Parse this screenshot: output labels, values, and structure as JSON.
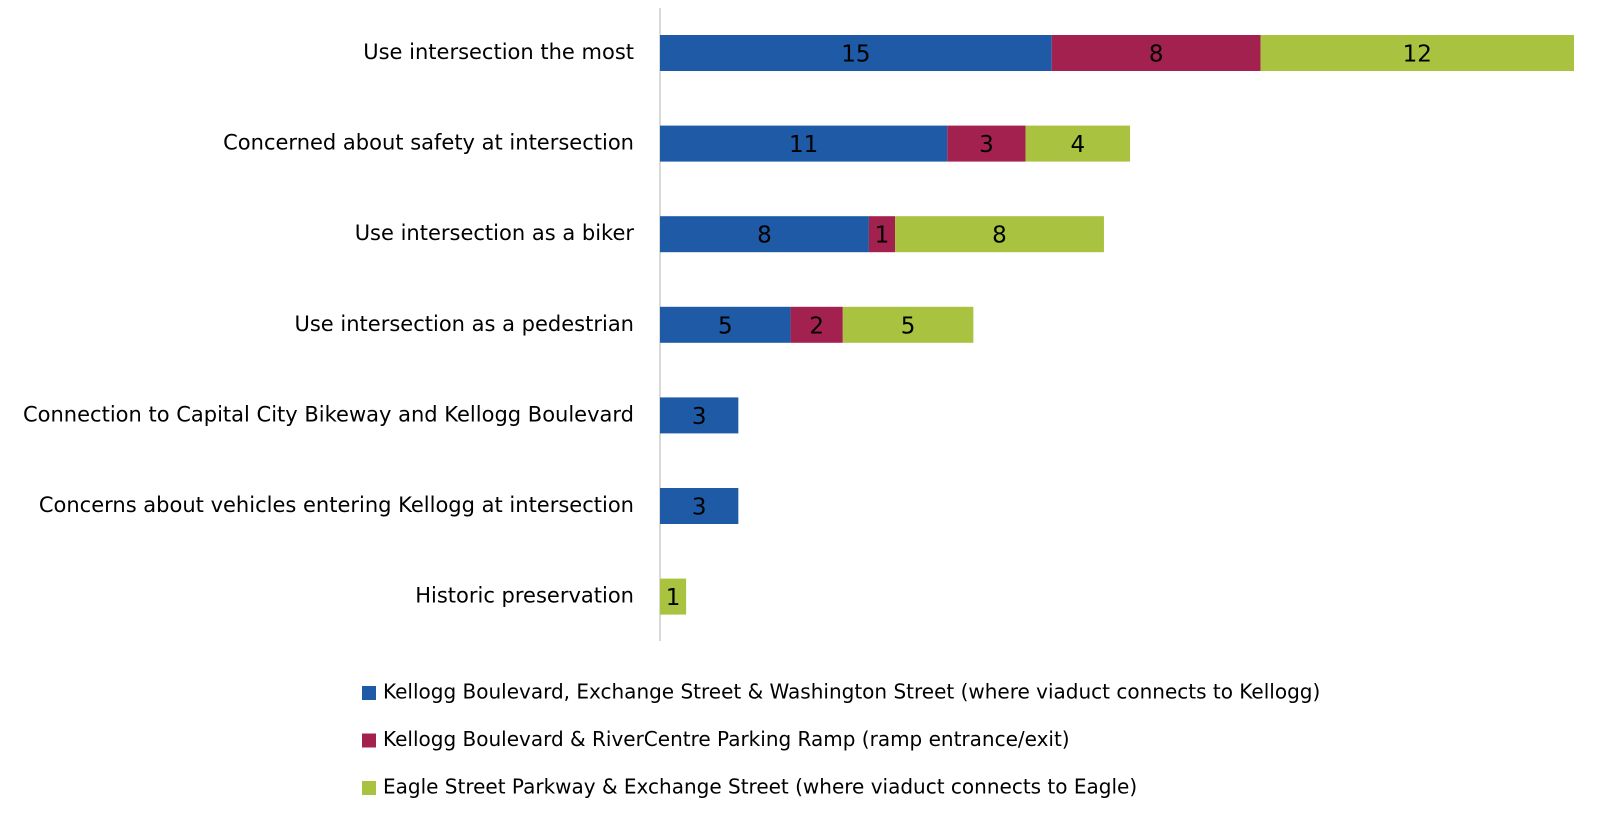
{
  "chart_data": {
    "type": "stacked-bar-horizontal",
    "categories": [
      "Use intersection the most",
      "Concerned about safety at intersection",
      "Use intersection as a biker",
      "Use intersection as a pedestrian",
      "Connection to Capital City Bikeway and Kellogg Boulevard",
      "Concerns about vehicles entering Kellogg at intersection",
      "Historic preservation"
    ],
    "series": [
      {
        "name": "Kellogg Boulevard, Exchange Street & Washington Street (where viaduct connects to Kellogg)",
        "color": "#1f5aa6",
        "values": [
          15,
          11,
          8,
          5,
          3,
          3,
          null
        ]
      },
      {
        "name": "Kellogg Boulevard & RiverCentre Parking Ramp (ramp entrance/exit)",
        "color": "#a3214f",
        "values": [
          8,
          3,
          1,
          2,
          null,
          null,
          null
        ]
      },
      {
        "name": "Eagle Street Parkway & Exchange Street (where viaduct connects to Eagle)",
        "color": "#a9c23f",
        "values": [
          12,
          4,
          8,
          5,
          null,
          null,
          1
        ]
      }
    ],
    "xlim": [
      0,
      35
    ],
    "legend": "bottom"
  }
}
